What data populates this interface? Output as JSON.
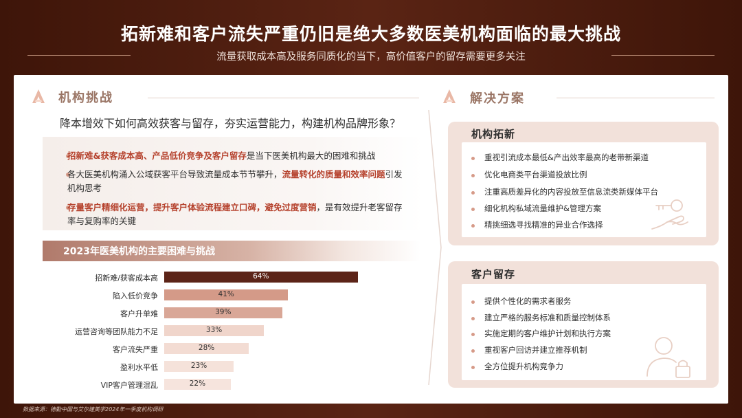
{
  "header": {
    "title": "拓新难和客户流失严重仍旧是绝大多数医美机构面临的最大挑战",
    "subtitle": "流量获取成本高及服务同质化的当下，高价值客户的留存需要更多关注"
  },
  "left": {
    "section_title": "机构挑战",
    "question": "降本增效下如何高效获客与留存，夯实运营能力，构建机构品牌形象？",
    "bullets": [
      {
        "hl1": "招新难&获客成本高、产品低价竞争及客户留存",
        "t1": "是当下医美机构最大的困难和挑战"
      },
      {
        "t1": "各大医美机构涌入公域获客平台导致流量成本节节攀升，",
        "hl1": "流量转化的质量和效率问题",
        "t2": "引发机构思考"
      },
      {
        "hl1": "存量客户精细化运营，提升客户体验流程建立口碑，避免过度营销",
        "t1": "，是有效提升老客留存率与复购率的关键"
      }
    ],
    "chart_header": "2023年医美机构的主要困难与挑战"
  },
  "chart_data": {
    "type": "bar",
    "orientation": "horizontal",
    "title": "2023年医美机构的主要困难与挑战",
    "categories": [
      "招新难/获客成本高",
      "陷入低价竞争",
      "客户升单难",
      "运营咨询等团队能力不足",
      "客户流失严重",
      "盈利水平低",
      "VIP客户管理混乱"
    ],
    "values": [
      64,
      41,
      39,
      33,
      28,
      23,
      22
    ],
    "labels": [
      "64%",
      "41%",
      "39%",
      "33%",
      "28%",
      "23%",
      "22%"
    ],
    "colors": [
      "#5c2418",
      "#d49a88",
      "#d9a797",
      "#f0d5cb",
      "#f3dcd3",
      "#f5e2da",
      "#f6e4dd"
    ],
    "xlim": [
      0,
      100
    ]
  },
  "right": {
    "section_title": "解决方案",
    "cards": [
      {
        "title": "机构拓新",
        "items": [
          "重视引流成本最低&产出效率最高的老带新渠道",
          "优化电商类平台渠道投放比例",
          "注重高质差异化的内容投放至信息流类新媒体平台",
          "细化机构私域流量维护&管理方案",
          "精挑细选寻找精准的异业合作选择"
        ]
      },
      {
        "title": "客户留存",
        "items": [
          "提供个性化的需求者服务",
          "建立严格的服务标准和质量控制体系",
          "实施定期的客户维护计划和执行方案",
          "重视客户回访并建立推荐机制",
          "全方位提升机构竞争力"
        ]
      }
    ]
  },
  "footnote": "数据来源：德勤中国与艾尔建美学2024年一季度机构调研",
  "colors": {
    "accent": "#b5412c",
    "brand_dark": "#4a1c10",
    "card_bg": "#f2e1da"
  }
}
